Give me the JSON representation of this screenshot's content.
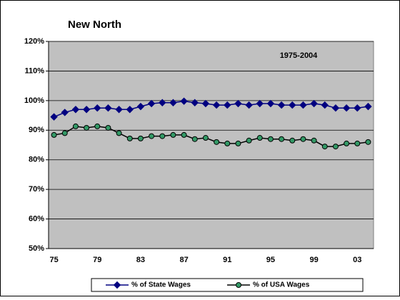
{
  "chart_data": {
    "type": "line",
    "title": "New North",
    "annotation": "1975-2004",
    "categories": [
      "75",
      null,
      null,
      null,
      "79",
      null,
      null,
      null,
      "83",
      null,
      null,
      null,
      "87",
      null,
      null,
      null,
      "91",
      null,
      null,
      null,
      "95",
      null,
      null,
      null,
      "99",
      null,
      null,
      null,
      "03",
      null
    ],
    "series": [
      {
        "name": "% of State Wages",
        "color": "#000080",
        "marker": "diamond",
        "values": [
          94.5,
          96,
          97,
          97,
          97.5,
          97.5,
          97,
          97,
          98,
          99,
          99.3,
          99.3,
          99.8,
          99.3,
          99,
          98.5,
          98.5,
          99,
          98.5,
          99,
          99,
          98.5,
          98.5,
          98.5,
          99,
          98.5,
          97.5,
          97.5,
          97.5,
          98
        ]
      },
      {
        "name": "% of USA Wages",
        "color": "#000000",
        "marker_color": "#339966",
        "marker": "circle",
        "values": [
          88.4,
          89,
          91.3,
          90.8,
          91.3,
          90.8,
          89,
          87.2,
          87.2,
          88,
          88,
          88.4,
          88.4,
          87,
          87.4,
          86,
          85.5,
          85.5,
          86.5,
          87.4,
          87,
          87,
          86.5,
          87,
          86.5,
          84.5,
          84.5,
          85.5,
          85.5,
          86
        ]
      }
    ],
    "ylim": [
      50,
      120
    ],
    "yticks": [
      {
        "value": 50,
        "label": "50%"
      },
      {
        "value": 60,
        "label": "60%"
      },
      {
        "value": 70,
        "label": "70%"
      },
      {
        "value": 80,
        "label": "80%"
      },
      {
        "value": 90,
        "label": "90%"
      },
      {
        "value": 100,
        "label": "100%"
      },
      {
        "value": 110,
        "label": "110%"
      },
      {
        "value": 120,
        "label": "120%"
      }
    ],
    "grid": true,
    "plot_background": "#c0c0c0",
    "legend": "bottom"
  }
}
